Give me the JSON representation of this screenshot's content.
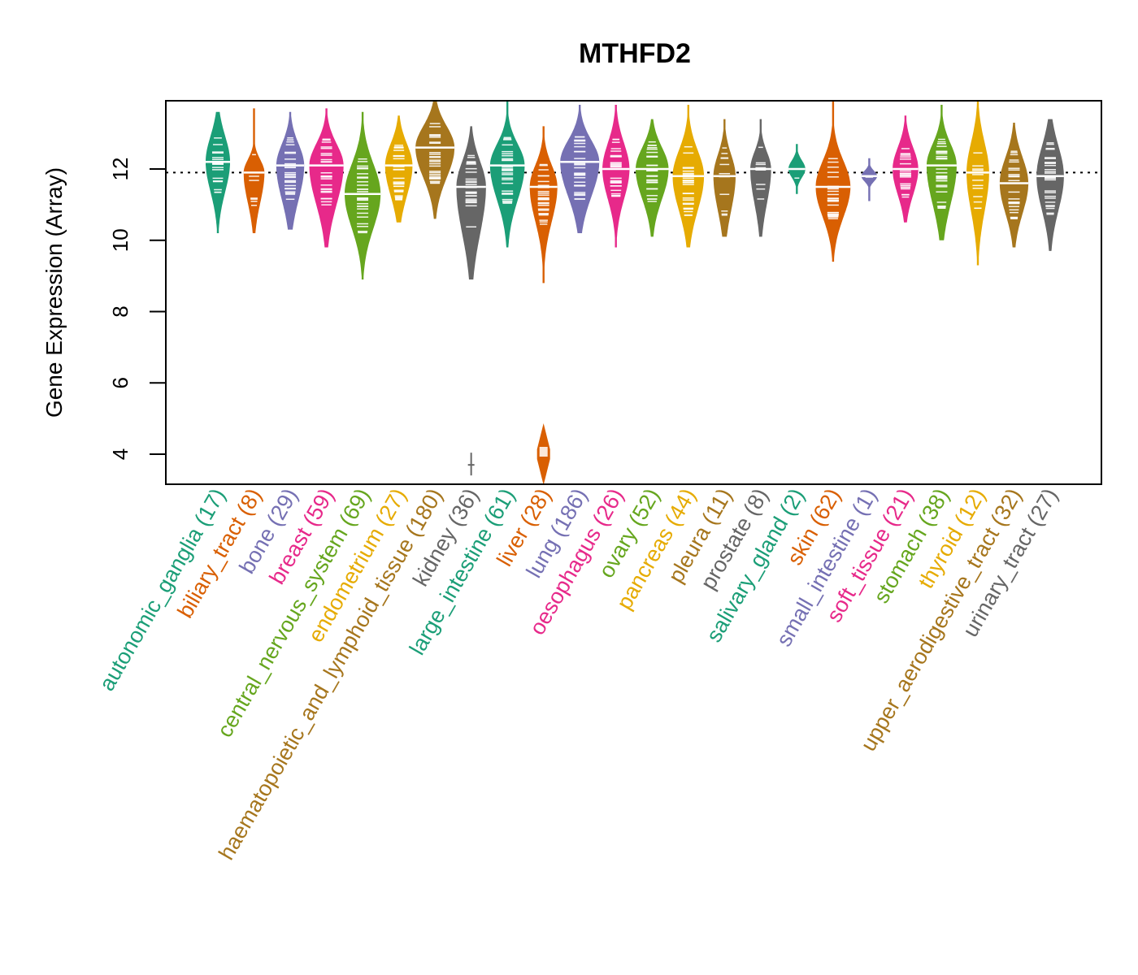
{
  "chart_data": {
    "type": "violin",
    "title": "MTHFD2",
    "xlabel": "",
    "ylabel": "Gene Expression (Array)",
    "ylim": [
      3.2,
      13.9
    ],
    "yticks": [
      4,
      6,
      8,
      10,
      12
    ],
    "reference_line": 11.9,
    "grid": false,
    "legend": "none",
    "categories": [
      {
        "name": "autonomic_ganglia",
        "n": 17,
        "color": "#1B9E77",
        "min": 10.2,
        "q1": 11.5,
        "median": 12.2,
        "q3": 12.8,
        "max": 13.6,
        "outliers": []
      },
      {
        "name": "biliary_tract",
        "n": 8,
        "color": "#D95F02",
        "min": 10.2,
        "q1": 11.2,
        "median": 11.9,
        "q3": 12.2,
        "max": 13.7,
        "outliers": []
      },
      {
        "name": "bone",
        "n": 29,
        "color": "#7570B3",
        "min": 10.3,
        "q1": 11.3,
        "median": 12.1,
        "q3": 12.6,
        "max": 13.6,
        "outliers": []
      },
      {
        "name": "breast",
        "n": 59,
        "color": "#E7298A",
        "min": 9.8,
        "q1": 11.2,
        "median": 12.1,
        "q3": 12.6,
        "max": 13.7,
        "outliers": []
      },
      {
        "name": "central_nervous_system",
        "n": 69,
        "color": "#66A61E",
        "min": 8.9,
        "q1": 10.5,
        "median": 11.3,
        "q3": 12.0,
        "max": 13.6,
        "outliers": []
      },
      {
        "name": "endometrium",
        "n": 27,
        "color": "#E6AB02",
        "min": 10.5,
        "q1": 11.4,
        "median": 12.1,
        "q3": 12.6,
        "max": 13.5,
        "outliers": []
      },
      {
        "name": "haematopoietic_and_lymphoid_tissue",
        "n": 180,
        "color": "#A6761D",
        "min": 10.6,
        "q1": 11.9,
        "median": 12.6,
        "q3": 13.1,
        "max": 13.9,
        "outliers": []
      },
      {
        "name": "kidney",
        "n": 36,
        "color": "#666666",
        "min": 8.9,
        "q1": 10.4,
        "median": 11.5,
        "q3": 12.1,
        "max": 13.2,
        "outliers": [
          3.7
        ]
      },
      {
        "name": "large_intestine",
        "n": 61,
        "color": "#1B9E77",
        "min": 9.8,
        "q1": 11.3,
        "median": 12.1,
        "q3": 12.6,
        "max": 13.9,
        "outliers": []
      },
      {
        "name": "liver",
        "n": 28,
        "color": "#D95F02",
        "min": 8.8,
        "q1": 10.7,
        "median": 11.5,
        "q3": 12.0,
        "max": 13.2,
        "outliers": [
          4.0
        ]
      },
      {
        "name": "lung",
        "n": 186,
        "color": "#7570B3",
        "min": 10.2,
        "q1": 11.4,
        "median": 12.2,
        "q3": 12.7,
        "max": 13.8,
        "outliers": []
      },
      {
        "name": "oesophagus",
        "n": 26,
        "color": "#E7298A",
        "min": 9.8,
        "q1": 11.3,
        "median": 12.0,
        "q3": 12.6,
        "max": 13.8,
        "outliers": []
      },
      {
        "name": "ovary",
        "n": 52,
        "color": "#66A61E",
        "min": 10.1,
        "q1": 11.3,
        "median": 12.0,
        "q3": 12.5,
        "max": 13.4,
        "outliers": []
      },
      {
        "name": "pancreas",
        "n": 44,
        "color": "#E6AB02",
        "min": 9.8,
        "q1": 11.0,
        "median": 11.8,
        "q3": 12.4,
        "max": 13.8,
        "outliers": []
      },
      {
        "name": "pleura",
        "n": 11,
        "color": "#A6761D",
        "min": 10.1,
        "q1": 11.0,
        "median": 11.8,
        "q3": 12.3,
        "max": 13.4,
        "outliers": []
      },
      {
        "name": "prostate",
        "n": 8,
        "color": "#666666",
        "min": 10.1,
        "q1": 11.2,
        "median": 12.0,
        "q3": 12.4,
        "max": 13.4,
        "outliers": []
      },
      {
        "name": "salivary_gland",
        "n": 2,
        "color": "#1B9E77",
        "min": 11.3,
        "q1": 11.8,
        "median": 12.0,
        "q3": 12.2,
        "max": 12.7,
        "outliers": []
      },
      {
        "name": "skin",
        "n": 62,
        "color": "#D95F02",
        "min": 9.4,
        "q1": 10.8,
        "median": 11.5,
        "q3": 12.1,
        "max": 13.9,
        "outliers": []
      },
      {
        "name": "small_intestine",
        "n": 1,
        "color": "#7570B3",
        "min": 11.1,
        "q1": 11.7,
        "median": 11.8,
        "q3": 11.9,
        "max": 12.3,
        "outliers": []
      },
      {
        "name": "soft_tissue",
        "n": 21,
        "color": "#E7298A",
        "min": 10.5,
        "q1": 11.4,
        "median": 12.0,
        "q3": 12.5,
        "max": 13.5,
        "outliers": []
      },
      {
        "name": "stomach",
        "n": 38,
        "color": "#66A61E",
        "min": 10.0,
        "q1": 11.2,
        "median": 12.1,
        "q3": 12.6,
        "max": 13.8,
        "outliers": []
      },
      {
        "name": "thyroid",
        "n": 12,
        "color": "#E6AB02",
        "min": 9.3,
        "q1": 11.0,
        "median": 11.9,
        "q3": 12.6,
        "max": 13.9,
        "outliers": []
      },
      {
        "name": "upper_aerodigestive_tract",
        "n": 32,
        "color": "#A6761D",
        "min": 9.8,
        "q1": 10.9,
        "median": 11.6,
        "q3": 12.2,
        "max": 13.3,
        "outliers": []
      },
      {
        "name": "urinary_tract",
        "n": 27,
        "color": "#666666",
        "min": 9.7,
        "q1": 11.0,
        "median": 11.8,
        "q3": 12.5,
        "max": 13.4,
        "outliers": []
      }
    ]
  }
}
